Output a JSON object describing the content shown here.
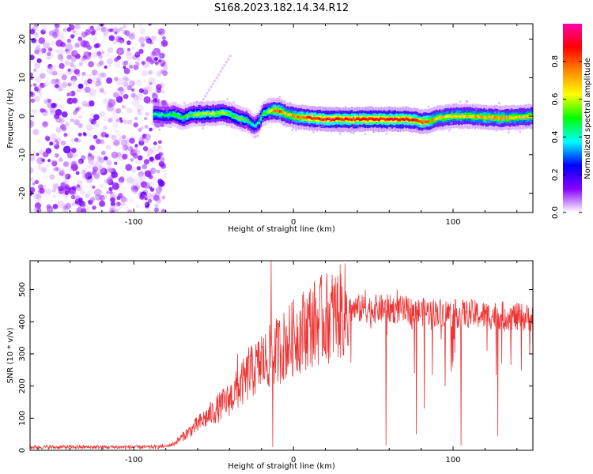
{
  "title": "S168.2023.182.14.34.R12",
  "chart_data": [
    {
      "type": "heatmap",
      "xlabel": "Height of straight line (km)",
      "ylabel": "Frequency (Hz)",
      "xlim": [
        -165,
        150
      ],
      "ylim": [
        -25,
        24
      ],
      "xticks": [
        -100,
        0,
        100
      ],
      "xtick_labels": [
        "-100",
        "0",
        "100"
      ],
      "yticks": [
        -20,
        -10,
        0,
        10,
        20
      ],
      "ytick_labels": [
        "-20",
        "-10",
        "0",
        "10",
        "20"
      ],
      "colorbar": {
        "label": "Normalized spectral amplitude",
        "range": [
          0,
          1
        ],
        "ticks": [
          0.0,
          0.2,
          0.4,
          0.6,
          0.8
        ],
        "tick_labels": [
          "0.0",
          "0.2",
          "0.4",
          "0.6",
          "0.8"
        ],
        "colors": [
          "#ffffff",
          "#8800ff",
          "#0000ff",
          "#00ffff",
          "#00ff00",
          "#ffff00",
          "#ff8800",
          "#ff0000",
          "#ff00aa"
        ]
      },
      "noise_region_x": [
        -165,
        -82
      ],
      "ridge": {
        "x": [
          -88,
          -80,
          -75,
          -70,
          -65,
          -60,
          -55,
          -50,
          -45,
          -40,
          -35,
          -30,
          -25,
          -22,
          -20,
          -15,
          -12,
          -8,
          -5,
          0,
          10,
          20,
          30,
          40,
          50,
          60,
          70,
          75,
          80,
          85,
          90,
          100,
          110,
          120,
          130,
          140,
          150
        ],
        "y": [
          0.5,
          0.2,
          0.5,
          -0.5,
          0.4,
          0.5,
          0.6,
          0.7,
          0.9,
          0.4,
          -0.5,
          -1.0,
          -2.5,
          -1.5,
          0.5,
          1.5,
          1.5,
          1.2,
          0.5,
          0.0,
          -0.5,
          -0.8,
          -0.8,
          -0.8,
          -0.8,
          -0.8,
          -0.8,
          -1.0,
          -1.5,
          -1.2,
          -0.5,
          0.0,
          0.0,
          -0.3,
          -0.5,
          -0.3,
          0.0
        ],
        "amp": [
          0.45,
          0.45,
          0.5,
          0.5,
          0.55,
          0.6,
          0.6,
          0.6,
          0.6,
          0.55,
          0.55,
          0.5,
          0.4,
          0.45,
          0.5,
          0.65,
          0.85,
          0.8,
          0.7,
          0.75,
          0.85,
          0.9,
          0.9,
          0.9,
          0.9,
          0.9,
          0.9,
          0.85,
          0.85,
          0.8,
          0.7,
          0.7,
          0.7,
          0.75,
          0.75,
          0.7,
          0.7
        ]
      }
    },
    {
      "type": "line",
      "xlabel": "Height of straight line (km)",
      "ylabel": "SNR (10 * v/v)",
      "xlim": [
        -165,
        150
      ],
      "ylim": [
        0,
        590
      ],
      "xticks": [
        -100,
        0,
        100
      ],
      "xtick_labels": [
        "-100",
        "0",
        "100"
      ],
      "yticks": [
        0,
        100,
        200,
        300,
        400,
        500
      ],
      "ytick_labels": [
        "0",
        "100",
        "200",
        "300",
        "400",
        "500"
      ],
      "series": [
        {
          "color": "#ee3333",
          "envelope": {
            "x": [
              -165,
              -90,
              -80,
              -75,
              -70,
              -65,
              -60,
              -55,
              -50,
              -45,
              -40,
              -35,
              -30,
              -25,
              -20,
              -15,
              -12,
              -10,
              -5,
              0,
              5,
              10,
              15,
              20,
              25,
              30,
              35,
              40,
              50,
              60,
              70,
              80,
              90,
              100,
              110,
              120,
              130,
              140,
              150
            ],
            "y": [
              10,
              10,
              12,
              20,
              40,
              60,
              80,
              100,
              120,
              140,
              160,
              190,
              220,
              250,
              270,
              290,
              300,
              310,
              330,
              350,
              370,
              390,
              400,
              410,
              420,
              430,
              440,
              440,
              440,
              440,
              435,
              430,
              430,
              425,
              425,
              420,
              420,
              415,
              410
            ]
          },
          "spikes": [
            {
              "x": -82,
              "y": 20
            },
            {
              "x": -35,
              "y": 300
            },
            {
              "x": -28,
              "y": 320
            },
            {
              "x": -20,
              "y": 355
            },
            {
              "x": -14,
              "y": 590
            },
            {
              "x": -13,
              "y": 10
            },
            {
              "x": 45,
              "y": 500
            },
            {
              "x": 58,
              "y": 15
            },
            {
              "x": 65,
              "y": 500
            },
            {
              "x": 77,
              "y": 50
            },
            {
              "x": 82,
              "y": 130
            },
            {
              "x": 95,
              "y": 200
            },
            {
              "x": 105,
              "y": 15
            },
            {
              "x": 128,
              "y": 45
            },
            {
              "x": 148,
              "y": 300
            }
          ]
        }
      ]
    }
  ]
}
